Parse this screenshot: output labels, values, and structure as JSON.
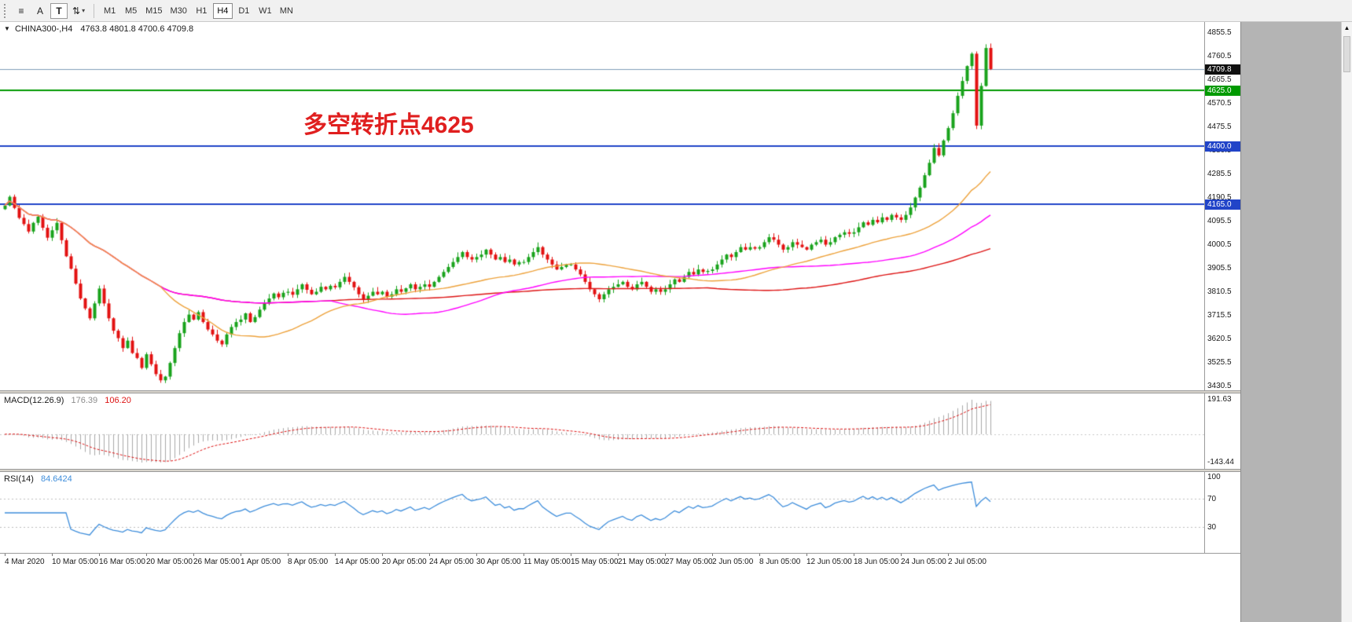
{
  "toolbar": {
    "tools": [
      {
        "name": "line-studies-icon",
        "glyph": "≡",
        "boxed": false,
        "caret": false
      },
      {
        "name": "text-label-tool-button",
        "glyph": "A",
        "boxed": false,
        "caret": false
      },
      {
        "name": "text-box-tool-button",
        "glyph": "T",
        "boxed": true,
        "caret": false
      },
      {
        "name": "arrows-tool-button",
        "glyph": "⇅",
        "boxed": false,
        "caret": true
      }
    ],
    "timeframes": [
      {
        "label": "M1",
        "active": false
      },
      {
        "label": "M5",
        "active": false
      },
      {
        "label": "M15",
        "active": false
      },
      {
        "label": "M30",
        "active": false
      },
      {
        "label": "H1",
        "active": false
      },
      {
        "label": "H4",
        "active": true
      },
      {
        "label": "D1",
        "active": false
      },
      {
        "label": "W1",
        "active": false
      },
      {
        "label": "MN",
        "active": false
      }
    ]
  },
  "scrollbar": {
    "up_arrow": "▲"
  },
  "chart_data": {
    "type": "candlestick",
    "header_marker": "▼",
    "title": "CHINA300-,H4",
    "open": "4763.8",
    "high": "4801.8",
    "low": "4700.6",
    "close": "4709.8",
    "ohlc_display": "4763.8 4801.8 4700.6 4709.8",
    "annotation": {
      "text": "多空转折点4625",
      "color": "#e01f1f"
    },
    "y_axis": {
      "min": 3430.5,
      "max": 4855.5,
      "step": 95,
      "ticks": [
        4855.5,
        4760.5,
        4665.5,
        4570.5,
        4475.5,
        4380.5,
        4285.5,
        4190.5,
        4095.5,
        4000.5,
        3905.5,
        3810.5,
        3715.5,
        3620.5,
        3525.5,
        3430.5
      ]
    },
    "price_lines": [
      {
        "price": 4709.8,
        "label": "4709.8",
        "line_color": "#7f9db9",
        "line_width": 1,
        "badge_bg": "#101010"
      },
      {
        "price": 4625.0,
        "label": "4625.0",
        "line_color": "#009a00",
        "line_width": 2,
        "badge_bg": "#009a00"
      },
      {
        "price": 4400.0,
        "label": "4400.0",
        "line_color": "#2144c8",
        "line_width": 2,
        "badge_bg": "#2144c8"
      },
      {
        "price": 4165.0,
        "label": "4165.0",
        "line_color": "#2144c8",
        "line_width": 2,
        "badge_bg": "#2144c8"
      }
    ],
    "x_labels": [
      "4 Mar 2020",
      "10 Mar 05:00",
      "16 Mar 05:00",
      "20 Mar 05:00",
      "26 Mar 05:00",
      "1 Apr 05:00",
      "8 Apr 05:00",
      "14 Apr 05:00",
      "20 Apr 05:00",
      "24 Apr 05:00",
      "30 Apr 05:00",
      "11 May 05:00",
      "15 May 05:00",
      "21 May 05:00",
      "27 May 05:00",
      "2 Jun 05:00",
      "8 Jun 05:00",
      "12 Jun 05:00",
      "18 Jun 05:00",
      "24 Jun 05:00",
      "2 Jul 05:00"
    ],
    "bars_per_label": 10,
    "closes": [
      4160,
      4195,
      4150,
      4110,
      4085,
      4055,
      4090,
      4115,
      4070,
      4030,
      4060,
      4090,
      4020,
      3955,
      3905,
      3845,
      3785,
      3745,
      3705,
      3765,
      3825,
      3765,
      3705,
      3655,
      3625,
      3585,
      3615,
      3565,
      3545,
      3505,
      3560,
      3520,
      3480,
      3455,
      3470,
      3525,
      3585,
      3645,
      3690,
      3720,
      3700,
      3730,
      3690,
      3660,
      3640,
      3615,
      3600,
      3640,
      3670,
      3690,
      3700,
      3725,
      3690,
      3710,
      3740,
      3765,
      3785,
      3805,
      3790,
      3808,
      3812,
      3800,
      3822,
      3842,
      3820,
      3802,
      3812,
      3832,
      3822,
      3836,
      3830,
      3852,
      3872,
      3852,
      3830,
      3802,
      3782,
      3796,
      3812,
      3802,
      3812,
      3792,
      3802,
      3822,
      3812,
      3826,
      3842,
      3822,
      3832,
      3842,
      3832,
      3852,
      3872,
      3892,
      3912,
      3932,
      3952,
      3972,
      3952,
      3942,
      3952,
      3962,
      3982,
      3962,
      3942,
      3952,
      3932,
      3942,
      3922,
      3932,
      3932,
      3952,
      3972,
      3992,
      3962,
      3942,
      3922,
      3902,
      3912,
      3922,
      3922,
      3902,
      3882,
      3852,
      3822,
      3802,
      3782,
      3802,
      3822,
      3832,
      3842,
      3852,
      3832,
      3822,
      3842,
      3852,
      3832,
      3812,
      3822,
      3812,
      3822,
      3842,
      3862,
      3852,
      3872,
      3892,
      3882,
      3902,
      3892,
      3896,
      3902,
      3922,
      3942,
      3962,
      3952,
      3972,
      3992,
      3982,
      3992,
      3986,
      3992,
      4012,
      4032,
      4022,
      4002,
      3982,
      3992,
      4012,
      4002,
      3992,
      3982,
      4002,
      4012,
      4022,
      4002,
      4012,
      4032,
      4042,
      4052,
      4046,
      4052,
      4072,
      4092,
      4082,
      4102,
      4092,
      4112,
      4102,
      4122,
      4112,
      4102,
      4122,
      4152,
      4192,
      4232,
      4282,
      4332,
      4392,
      4362,
      4422,
      4472,
      4532,
      4602,
      4662,
      4722,
      4772,
      4482,
      4642,
      4795,
      4710
    ],
    "candle_up_color": "#19a31c",
    "candle_down_color": "#e31212",
    "moving_averages": [
      {
        "name": "ma-slow",
        "period": 150,
        "color": "#dd1414"
      },
      {
        "name": "ma-mid",
        "period": 70,
        "color": "#ff00ff"
      },
      {
        "name": "ma-fast",
        "period": 34,
        "color": "#eda23c"
      }
    ],
    "macd": {
      "label": "MACD(12.26.9)",
      "main_value": "176.39",
      "signal_value": "106.20",
      "fast": 12,
      "slow": 26,
      "signal": 9,
      "axis_labels": [
        "191.63",
        "-143.44"
      ],
      "histogram_color": "#a8a8a8",
      "signal_color": "#dd1414",
      "main_value_color": "#8c8c8c",
      "signal_value_color": "#dd1414"
    },
    "rsi": {
      "label": "RSI(14)",
      "value": "84.6424",
      "period": 14,
      "levels": [
        70,
        30
      ],
      "axis_labels": [
        "100",
        "70",
        "30"
      ],
      "line_color": "#3f8edb",
      "value_color": "#3f8edb",
      "level_line_color": "#bdbdbd"
    }
  }
}
